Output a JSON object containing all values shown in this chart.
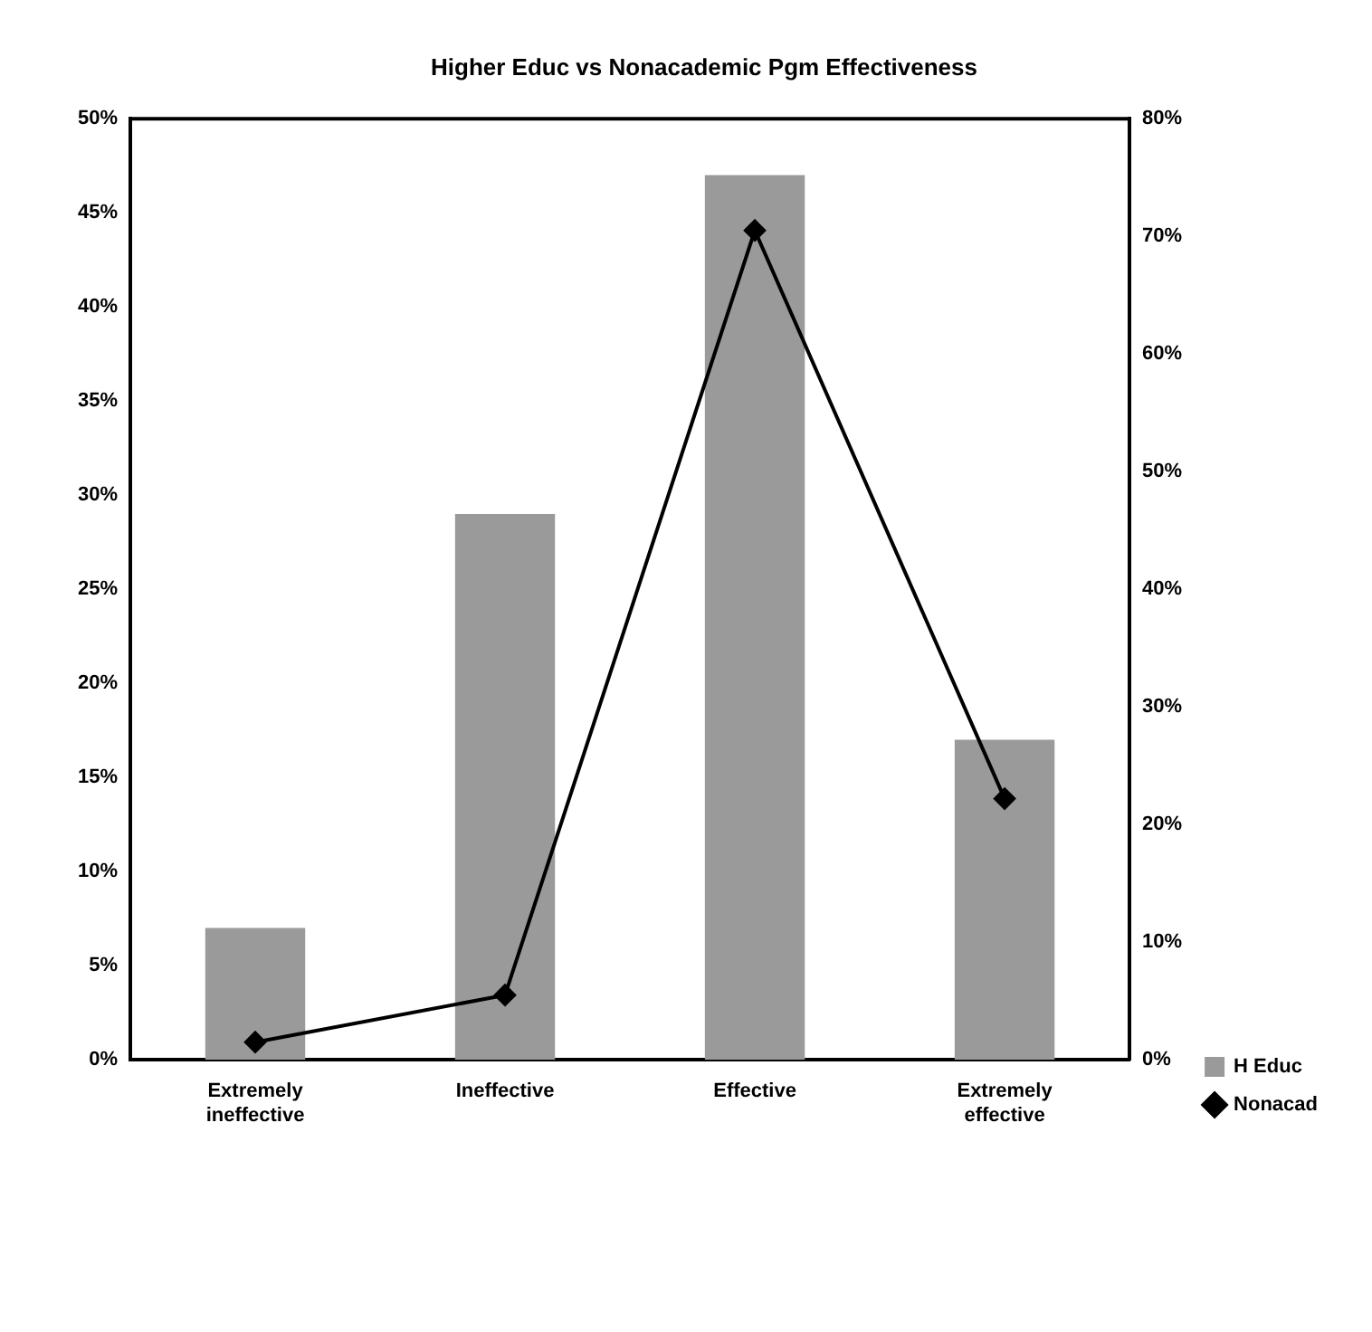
{
  "chart_data": {
    "type": "bar",
    "title": "Higher Educ vs Nonacademic Pgm Effectiveness",
    "categories": [
      "Extremely ineffective",
      "Ineffective",
      "Effective",
      "Extremely effective"
    ],
    "series": [
      {
        "name": "H Educ",
        "color": "#9a9a9a",
        "values": [
          7,
          29,
          47,
          17
        ]
      },
      {
        "name": "Nonacad",
        "type": "line",
        "axis": "y2",
        "color": "#000000",
        "values": [
          1.5,
          5.5,
          70.5,
          22.2
        ]
      }
    ],
    "ylim": [
      0,
      50
    ],
    "yticks": [
      {
        "value": 0,
        "label": "0%"
      },
      {
        "value": 5,
        "label": "5%"
      },
      {
        "value": 10,
        "label": "10%"
      },
      {
        "value": 15,
        "label": "15%"
      },
      {
        "value": 20,
        "label": "20%"
      },
      {
        "value": 25,
        "label": "25%"
      },
      {
        "value": 30,
        "label": "30%"
      },
      {
        "value": 35,
        "label": "35%"
      },
      {
        "value": 40,
        "label": "40%"
      },
      {
        "value": 45,
        "label": "45%"
      },
      {
        "value": 50,
        "label": "50%"
      }
    ],
    "y2lim": [
      0,
      80
    ],
    "y2ticks": [
      {
        "value": 0,
        "label": "0%"
      },
      {
        "value": 10,
        "label": "10%"
      },
      {
        "value": 20,
        "label": "20%"
      },
      {
        "value": 30,
        "label": "30%"
      },
      {
        "value": 40,
        "label": "40%"
      },
      {
        "value": 50,
        "label": "50%"
      },
      {
        "value": 60,
        "label": "60%"
      },
      {
        "value": 70,
        "label": "70%"
      },
      {
        "value": 80,
        "label": "80%"
      }
    ],
    "grid": false,
    "legend": "bottom right",
    "marker": "diamond",
    "line_style": "solid"
  }
}
